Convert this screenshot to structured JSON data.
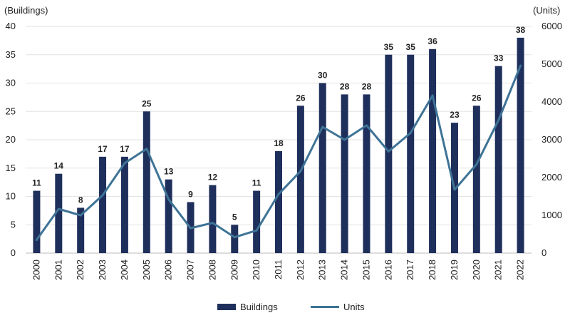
{
  "chart_data": {
    "type": "bar",
    "categories": [
      "2000",
      "2001",
      "2002",
      "2003",
      "2004",
      "2005",
      "2006",
      "2007",
      "2008",
      "2009",
      "2010",
      "2011",
      "2012",
      "2013",
      "2014",
      "2015",
      "2016",
      "2017",
      "2018",
      "2019",
      "2020",
      "2021",
      "2022"
    ],
    "series": [
      {
        "name": "Buildings",
        "type": "bar",
        "axis": "left",
        "color": "#1f2f5c",
        "values": [
          11,
          14,
          8,
          17,
          17,
          25,
          13,
          9,
          12,
          5,
          11,
          18,
          26,
          30,
          28,
          28,
          35,
          35,
          36,
          23,
          26,
          33,
          38
        ]
      },
      {
        "name": "Units",
        "type": "line",
        "axis": "right",
        "color": "#3e7396",
        "values": [
          350,
          1170,
          1000,
          1530,
          2380,
          2760,
          1420,
          660,
          800,
          420,
          600,
          1560,
          2170,
          3340,
          3000,
          3380,
          2690,
          3180,
          4170,
          1680,
          2350,
          3520,
          4960
        ]
      }
    ],
    "y_left": {
      "label": "(Buildings)",
      "ylim": [
        0,
        40
      ],
      "ticks": [
        "0",
        "5",
        "10",
        "15",
        "20",
        "25",
        "30",
        "35",
        "40"
      ]
    },
    "y_right": {
      "label": "(Units)",
      "ylim": [
        0,
        6000
      ],
      "ticks": [
        "0",
        "1000",
        "2000",
        "3000",
        "4000",
        "5000",
        "6000"
      ]
    },
    "grid": "horizontal",
    "legend_position": "bottom-center",
    "data_labels": true
  }
}
